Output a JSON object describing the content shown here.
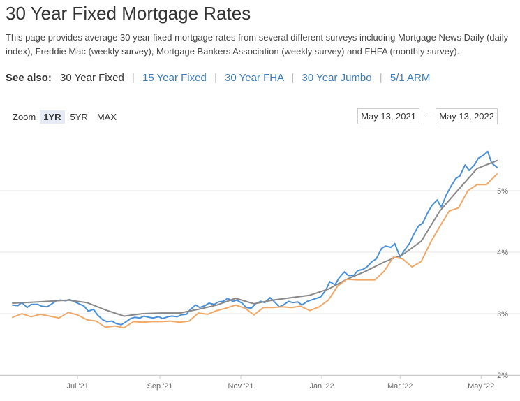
{
  "page": {
    "title": "30 Year Fixed Mortgage Rates",
    "description": "This page provides average 30 year fixed mortgage rates from several different surveys including Mortgage News Daily (daily index), Freddie Mac (weekly survey), Mortgage Bankers Association (weekly survey) and FHFA (monthly survey)."
  },
  "see_also": {
    "label": "See also:",
    "current": "30 Year Fixed",
    "links": [
      "15 Year Fixed",
      "30 Year FHA",
      "30 Year Jumbo",
      "5/1 ARM"
    ]
  },
  "zoom": {
    "label": "Zoom",
    "options": [
      "1YR",
      "5YR",
      "MAX"
    ],
    "selected": "1YR"
  },
  "range": {
    "from": "May 13, 2021",
    "separator": "–",
    "to": "May 13, 2022"
  },
  "colors": {
    "daily": "#4a90d9",
    "weekly_gray": "#888888",
    "weekly_orange": "#f0a868",
    "link": "#3a7bbd",
    "grid": "#e6e6e6"
  },
  "chart_data": {
    "type": "line",
    "x_start": "2021-05-13",
    "x_end": "2022-05-13",
    "xticks": [
      {
        "date": "2021-07-01",
        "label": "Jul '21"
      },
      {
        "date": "2021-09-01",
        "label": "Sep '21"
      },
      {
        "date": "2021-11-01",
        "label": "Nov '21"
      },
      {
        "date": "2022-01-01",
        "label": "Jan '22"
      },
      {
        "date": "2022-03-01",
        "label": "Mar '22"
      },
      {
        "date": "2022-05-01",
        "label": "May '22"
      }
    ],
    "yticks": [
      {
        "value": 2,
        "label": "2%"
      },
      {
        "value": 3,
        "label": "3%"
      },
      {
        "value": 4,
        "label": "4%"
      },
      {
        "value": 5,
        "label": "5%"
      }
    ],
    "ylim": [
      2,
      6
    ],
    "grid": true,
    "legend": false,
    "series": [
      {
        "color": "#4a90d9",
        "points": [
          [
            "2021-05-13",
            3.14
          ],
          [
            "2021-05-17",
            3.13
          ],
          [
            "2021-05-20",
            3.18
          ],
          [
            "2021-05-24",
            3.1
          ],
          [
            "2021-05-27",
            3.15
          ],
          [
            "2021-06-01",
            3.15
          ],
          [
            "2021-06-04",
            3.12
          ],
          [
            "2021-06-08",
            3.11
          ],
          [
            "2021-06-11",
            3.15
          ],
          [
            "2021-06-15",
            3.21
          ],
          [
            "2021-06-18",
            3.22
          ],
          [
            "2021-06-22",
            3.21
          ],
          [
            "2021-06-25",
            3.23
          ],
          [
            "2021-06-29",
            3.19
          ],
          [
            "2021-07-02",
            3.16
          ],
          [
            "2021-07-06",
            3.12
          ],
          [
            "2021-07-09",
            3.04
          ],
          [
            "2021-07-13",
            3.07
          ],
          [
            "2021-07-16",
            2.98
          ],
          [
            "2021-07-20",
            2.9
          ],
          [
            "2021-07-23",
            2.87
          ],
          [
            "2021-07-27",
            2.88
          ],
          [
            "2021-07-30",
            2.84
          ],
          [
            "2021-08-03",
            2.82
          ],
          [
            "2021-08-06",
            2.86
          ],
          [
            "2021-08-10",
            2.92
          ],
          [
            "2021-08-13",
            2.94
          ],
          [
            "2021-08-17",
            2.93
          ],
          [
            "2021-08-20",
            2.96
          ],
          [
            "2021-08-24",
            2.94
          ],
          [
            "2021-08-27",
            2.93
          ],
          [
            "2021-08-31",
            2.95
          ],
          [
            "2021-09-03",
            2.92
          ],
          [
            "2021-09-07",
            2.95
          ],
          [
            "2021-09-10",
            2.96
          ],
          [
            "2021-09-14",
            2.95
          ],
          [
            "2021-09-17",
            2.98
          ],
          [
            "2021-09-21",
            2.99
          ],
          [
            "2021-09-24",
            3.07
          ],
          [
            "2021-09-28",
            3.14
          ],
          [
            "2021-10-01",
            3.1
          ],
          [
            "2021-10-05",
            3.13
          ],
          [
            "2021-10-08",
            3.17
          ],
          [
            "2021-10-12",
            3.15
          ],
          [
            "2021-10-15",
            3.19
          ],
          [
            "2021-10-19",
            3.2
          ],
          [
            "2021-10-22",
            3.25
          ],
          [
            "2021-10-26",
            3.2
          ],
          [
            "2021-10-29",
            3.22
          ],
          [
            "2021-11-02",
            3.17
          ],
          [
            "2021-11-05",
            3.1
          ],
          [
            "2021-11-09",
            3.09
          ],
          [
            "2021-11-12",
            3.16
          ],
          [
            "2021-11-16",
            3.2
          ],
          [
            "2021-11-19",
            3.18
          ],
          [
            "2021-11-23",
            3.26
          ],
          [
            "2021-11-26",
            3.2
          ],
          [
            "2021-11-30",
            3.11
          ],
          [
            "2021-12-03",
            3.14
          ],
          [
            "2021-12-07",
            3.2
          ],
          [
            "2021-12-10",
            3.18
          ],
          [
            "2021-12-14",
            3.19
          ],
          [
            "2021-12-17",
            3.14
          ],
          [
            "2021-12-21",
            3.2
          ],
          [
            "2021-12-24",
            3.22
          ],
          [
            "2021-12-28",
            3.25
          ],
          [
            "2021-12-31",
            3.27
          ],
          [
            "2022-01-04",
            3.38
          ],
          [
            "2022-01-07",
            3.52
          ],
          [
            "2022-01-11",
            3.47
          ],
          [
            "2022-01-14",
            3.58
          ],
          [
            "2022-01-18",
            3.68
          ],
          [
            "2022-01-21",
            3.62
          ],
          [
            "2022-01-25",
            3.62
          ],
          [
            "2022-01-28",
            3.7
          ],
          [
            "2022-02-01",
            3.72
          ],
          [
            "2022-02-04",
            3.76
          ],
          [
            "2022-02-08",
            3.85
          ],
          [
            "2022-02-11",
            3.89
          ],
          [
            "2022-02-15",
            4.06
          ],
          [
            "2022-02-18",
            4.1
          ],
          [
            "2022-02-22",
            4.08
          ],
          [
            "2022-02-25",
            4.14
          ],
          [
            "2022-03-01",
            3.92
          ],
          [
            "2022-03-04",
            4.02
          ],
          [
            "2022-03-08",
            4.14
          ],
          [
            "2022-03-11",
            4.28
          ],
          [
            "2022-03-15",
            4.43
          ],
          [
            "2022-03-18",
            4.47
          ],
          [
            "2022-03-22",
            4.65
          ],
          [
            "2022-03-25",
            4.76
          ],
          [
            "2022-03-29",
            4.85
          ],
          [
            "2022-04-01",
            4.73
          ],
          [
            "2022-04-05",
            4.94
          ],
          [
            "2022-04-08",
            5.06
          ],
          [
            "2022-04-12",
            5.2
          ],
          [
            "2022-04-15",
            5.24
          ],
          [
            "2022-04-19",
            5.42
          ],
          [
            "2022-04-22",
            5.33
          ],
          [
            "2022-04-26",
            5.42
          ],
          [
            "2022-04-29",
            5.53
          ],
          [
            "2022-05-03",
            5.58
          ],
          [
            "2022-05-06",
            5.64
          ],
          [
            "2022-05-09",
            5.45
          ],
          [
            "2022-05-13",
            5.38
          ]
        ]
      },
      {
        "color": "#888888",
        "points": [
          [
            "2021-05-13",
            3.17
          ],
          [
            "2021-06-01",
            3.19
          ],
          [
            "2021-06-24",
            3.22
          ],
          [
            "2021-07-08",
            3.18
          ],
          [
            "2021-07-22",
            3.06
          ],
          [
            "2021-08-05",
            2.96
          ],
          [
            "2021-08-19",
            3.0
          ],
          [
            "2021-09-02",
            3.01
          ],
          [
            "2021-09-16",
            3.01
          ],
          [
            "2021-09-30",
            3.07
          ],
          [
            "2021-10-14",
            3.14
          ],
          [
            "2021-10-28",
            3.25
          ],
          [
            "2021-11-11",
            3.16
          ],
          [
            "2021-11-25",
            3.22
          ],
          [
            "2021-12-09",
            3.26
          ],
          [
            "2021-12-23",
            3.3
          ],
          [
            "2022-01-06",
            3.4
          ],
          [
            "2022-01-20",
            3.56
          ],
          [
            "2022-02-03",
            3.69
          ],
          [
            "2022-02-17",
            3.84
          ],
          [
            "2022-03-03",
            3.96
          ],
          [
            "2022-03-17",
            4.18
          ],
          [
            "2022-03-31",
            4.67
          ],
          [
            "2022-04-14",
            5.02
          ],
          [
            "2022-04-28",
            5.36
          ],
          [
            "2022-05-13",
            5.49
          ]
        ]
      },
      {
        "color": "#f0a868",
        "points": [
          [
            "2021-05-13",
            2.94
          ],
          [
            "2021-05-20",
            3.0
          ],
          [
            "2021-05-27",
            2.95
          ],
          [
            "2021-06-03",
            2.99
          ],
          [
            "2021-06-10",
            2.96
          ],
          [
            "2021-06-17",
            2.93
          ],
          [
            "2021-06-24",
            3.02
          ],
          [
            "2021-07-01",
            2.98
          ],
          [
            "2021-07-08",
            2.9
          ],
          [
            "2021-07-15",
            2.88
          ],
          [
            "2021-07-22",
            2.78
          ],
          [
            "2021-07-29",
            2.8
          ],
          [
            "2021-08-05",
            2.77
          ],
          [
            "2021-08-12",
            2.87
          ],
          [
            "2021-08-19",
            2.86
          ],
          [
            "2021-08-26",
            2.87
          ],
          [
            "2021-09-02",
            2.87
          ],
          [
            "2021-09-09",
            2.88
          ],
          [
            "2021-09-16",
            2.86
          ],
          [
            "2021-09-23",
            2.88
          ],
          [
            "2021-09-30",
            3.01
          ],
          [
            "2021-10-07",
            2.99
          ],
          [
            "2021-10-14",
            3.05
          ],
          [
            "2021-10-21",
            3.09
          ],
          [
            "2021-10-28",
            3.14
          ],
          [
            "2021-11-04",
            3.09
          ],
          [
            "2021-11-11",
            2.98
          ],
          [
            "2021-11-18",
            3.1
          ],
          [
            "2021-11-25",
            3.1
          ],
          [
            "2021-12-02",
            3.11
          ],
          [
            "2021-12-09",
            3.1
          ],
          [
            "2021-12-16",
            3.12
          ],
          [
            "2021-12-23",
            3.05
          ],
          [
            "2021-12-30",
            3.11
          ],
          [
            "2022-01-06",
            3.22
          ],
          [
            "2022-01-13",
            3.45
          ],
          [
            "2022-01-20",
            3.56
          ],
          [
            "2022-01-27",
            3.55
          ],
          [
            "2022-02-03",
            3.55
          ],
          [
            "2022-02-10",
            3.55
          ],
          [
            "2022-02-17",
            3.69
          ],
          [
            "2022-02-24",
            3.92
          ],
          [
            "2022-03-03",
            3.89
          ],
          [
            "2022-03-10",
            3.76
          ],
          [
            "2022-03-17",
            3.85
          ],
          [
            "2022-03-24",
            4.16
          ],
          [
            "2022-03-31",
            4.42
          ],
          [
            "2022-04-07",
            4.67
          ],
          [
            "2022-04-14",
            4.72
          ],
          [
            "2022-04-21",
            5.0
          ],
          [
            "2022-04-28",
            5.1
          ],
          [
            "2022-05-05",
            5.1
          ],
          [
            "2022-05-13",
            5.27
          ]
        ]
      }
    ]
  }
}
